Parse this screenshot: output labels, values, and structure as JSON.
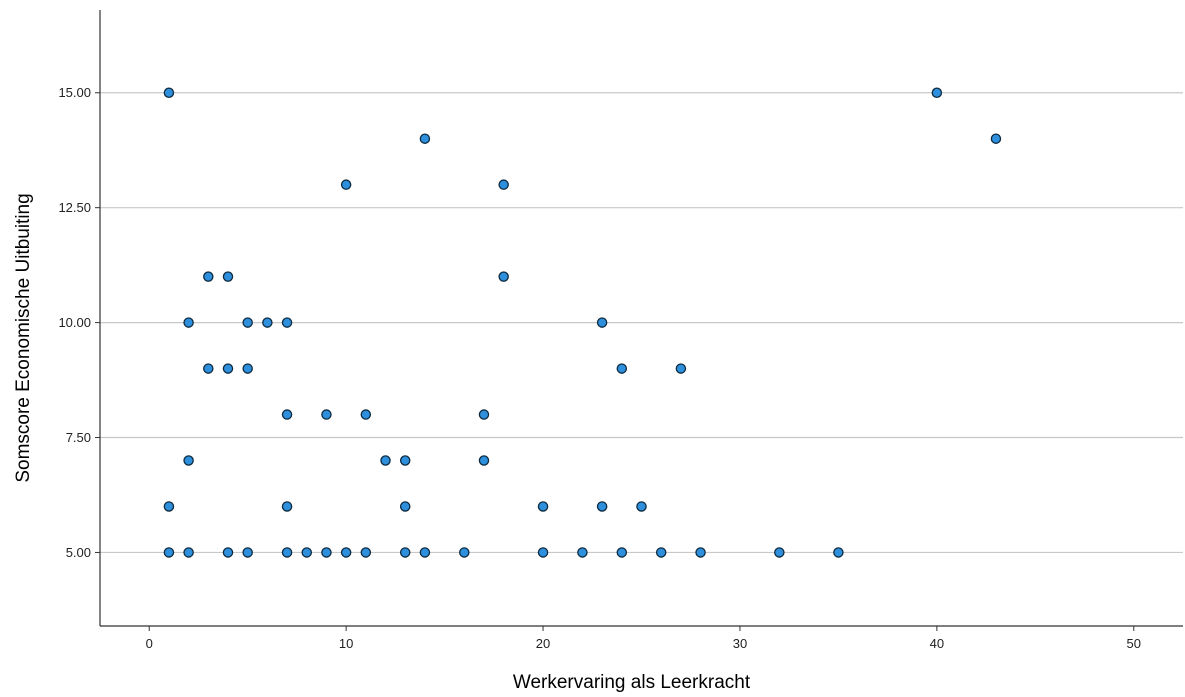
{
  "chart_data": {
    "type": "scatter",
    "title": "",
    "xlabel": "Werkervaring als Leerkracht",
    "ylabel": "Somscore Economische Uitbuiting",
    "xlim": [
      -2.5,
      52.5
    ],
    "ylim": [
      3.4,
      16.8
    ],
    "x_ticks": [
      0,
      10,
      20,
      30,
      40,
      50
    ],
    "x_tick_labels": [
      "0",
      "10",
      "20",
      "30",
      "40",
      "50"
    ],
    "y_ticks": [
      5,
      7.5,
      10,
      12.5,
      15
    ],
    "y_tick_labels": [
      "5.00",
      "7.50",
      "10.00",
      "12.50",
      "15.00"
    ],
    "grid": "horizontal",
    "points": [
      {
        "x": 1,
        "y": 15
      },
      {
        "x": 40,
        "y": 15
      },
      {
        "x": 14,
        "y": 14
      },
      {
        "x": 43,
        "y": 14
      },
      {
        "x": 10,
        "y": 13
      },
      {
        "x": 18,
        "y": 13
      },
      {
        "x": 3,
        "y": 11
      },
      {
        "x": 4,
        "y": 11
      },
      {
        "x": 18,
        "y": 11
      },
      {
        "x": 2,
        "y": 10
      },
      {
        "x": 5,
        "y": 10
      },
      {
        "x": 6,
        "y": 10
      },
      {
        "x": 7,
        "y": 10
      },
      {
        "x": 23,
        "y": 10
      },
      {
        "x": 3,
        "y": 9
      },
      {
        "x": 4,
        "y": 9
      },
      {
        "x": 5,
        "y": 9
      },
      {
        "x": 24,
        "y": 9
      },
      {
        "x": 27,
        "y": 9
      },
      {
        "x": 7,
        "y": 8
      },
      {
        "x": 9,
        "y": 8
      },
      {
        "x": 11,
        "y": 8
      },
      {
        "x": 17,
        "y": 8
      },
      {
        "x": 2,
        "y": 7
      },
      {
        "x": 12,
        "y": 7
      },
      {
        "x": 13,
        "y": 7
      },
      {
        "x": 17,
        "y": 7
      },
      {
        "x": 1,
        "y": 6
      },
      {
        "x": 7,
        "y": 6
      },
      {
        "x": 13,
        "y": 6
      },
      {
        "x": 20,
        "y": 6
      },
      {
        "x": 23,
        "y": 6
      },
      {
        "x": 25,
        "y": 6
      },
      {
        "x": 1,
        "y": 5
      },
      {
        "x": 2,
        "y": 5
      },
      {
        "x": 4,
        "y": 5
      },
      {
        "x": 5,
        "y": 5
      },
      {
        "x": 7,
        "y": 5
      },
      {
        "x": 8,
        "y": 5
      },
      {
        "x": 9,
        "y": 5
      },
      {
        "x": 10,
        "y": 5
      },
      {
        "x": 11,
        "y": 5
      },
      {
        "x": 13,
        "y": 5
      },
      {
        "x": 14,
        "y": 5
      },
      {
        "x": 16,
        "y": 5
      },
      {
        "x": 20,
        "y": 5
      },
      {
        "x": 22,
        "y": 5
      },
      {
        "x": 24,
        "y": 5
      },
      {
        "x": 26,
        "y": 5
      },
      {
        "x": 28,
        "y": 5
      },
      {
        "x": 32,
        "y": 5
      },
      {
        "x": 35,
        "y": 5
      }
    ],
    "colors": {
      "point_fill": "#2e8fdc",
      "point_stroke": "#0d2a3f",
      "gridline": "#c8c8c8",
      "axis": "#333333"
    }
  }
}
